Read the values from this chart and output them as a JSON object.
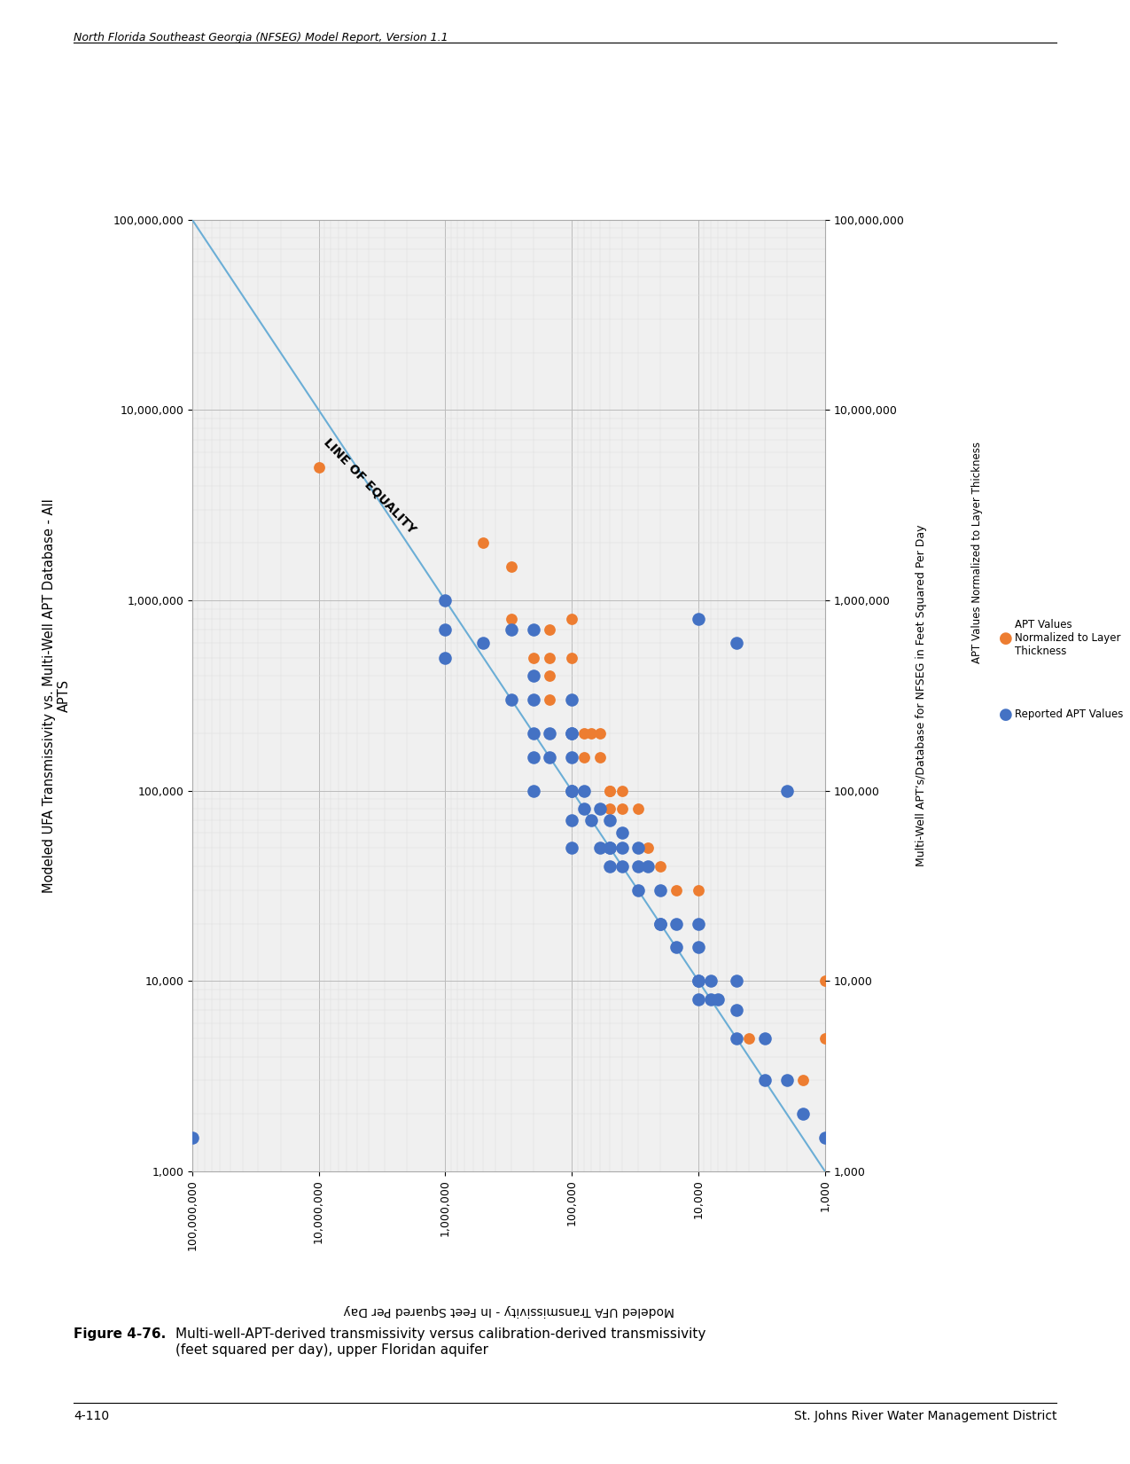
{
  "blue_points": [
    [
      100000000,
      1500
    ],
    [
      1000000,
      1000000
    ],
    [
      1000000,
      700000
    ],
    [
      1000000,
      500000
    ],
    [
      500000,
      600000
    ],
    [
      300000,
      700000
    ],
    [
      200000,
      700000
    ],
    [
      300000,
      300000
    ],
    [
      200000,
      400000
    ],
    [
      200000,
      300000
    ],
    [
      200000,
      200000
    ],
    [
      200000,
      150000
    ],
    [
      200000,
      100000
    ],
    [
      150000,
      200000
    ],
    [
      150000,
      150000
    ],
    [
      100000,
      300000
    ],
    [
      100000,
      200000
    ],
    [
      100000,
      200000
    ],
    [
      100000,
      150000
    ],
    [
      100000,
      100000
    ],
    [
      100000,
      100000
    ],
    [
      100000,
      70000
    ],
    [
      100000,
      50000
    ],
    [
      80000,
      100000
    ],
    [
      80000,
      80000
    ],
    [
      70000,
      70000
    ],
    [
      60000,
      80000
    ],
    [
      60000,
      50000
    ],
    [
      50000,
      70000
    ],
    [
      50000,
      50000
    ],
    [
      50000,
      50000
    ],
    [
      50000,
      40000
    ],
    [
      40000,
      60000
    ],
    [
      40000,
      50000
    ],
    [
      40000,
      40000
    ],
    [
      30000,
      50000
    ],
    [
      30000,
      40000
    ],
    [
      30000,
      30000
    ],
    [
      25000,
      40000
    ],
    [
      20000,
      30000
    ],
    [
      20000,
      20000
    ],
    [
      20000,
      20000
    ],
    [
      15000,
      20000
    ],
    [
      15000,
      15000
    ],
    [
      10000,
      20000
    ],
    [
      10000,
      15000
    ],
    [
      10000,
      10000
    ],
    [
      10000,
      10000
    ],
    [
      10000,
      8000
    ],
    [
      8000,
      10000
    ],
    [
      8000,
      8000
    ],
    [
      7000,
      8000
    ],
    [
      5000,
      10000
    ],
    [
      5000,
      7000
    ],
    [
      5000,
      5000
    ],
    [
      3000,
      5000
    ],
    [
      3000,
      3000
    ],
    [
      2000,
      3000
    ],
    [
      1500,
      2000
    ],
    [
      10000,
      800000
    ],
    [
      5000,
      600000
    ],
    [
      2000,
      100000
    ],
    [
      1000,
      1500
    ]
  ],
  "orange_points": [
    [
      10000000,
      5000000
    ],
    [
      500000,
      2000000
    ],
    [
      300000,
      1500000
    ],
    [
      300000,
      800000
    ],
    [
      200000,
      700000
    ],
    [
      200000,
      500000
    ],
    [
      150000,
      700000
    ],
    [
      150000,
      500000
    ],
    [
      150000,
      400000
    ],
    [
      150000,
      300000
    ],
    [
      100000,
      800000
    ],
    [
      100000,
      500000
    ],
    [
      100000,
      300000
    ],
    [
      100000,
      200000
    ],
    [
      100000,
      150000
    ],
    [
      100000,
      100000
    ],
    [
      80000,
      200000
    ],
    [
      80000,
      150000
    ],
    [
      70000,
      200000
    ],
    [
      60000,
      200000
    ],
    [
      60000,
      150000
    ],
    [
      50000,
      100000
    ],
    [
      50000,
      100000
    ],
    [
      50000,
      80000
    ],
    [
      40000,
      100000
    ],
    [
      40000,
      80000
    ],
    [
      40000,
      60000
    ],
    [
      30000,
      80000
    ],
    [
      30000,
      50000
    ],
    [
      30000,
      40000
    ],
    [
      25000,
      50000
    ],
    [
      20000,
      40000
    ],
    [
      20000,
      30000
    ],
    [
      15000,
      30000
    ],
    [
      15000,
      20000
    ],
    [
      10000,
      30000
    ],
    [
      10000,
      20000
    ],
    [
      10000,
      15000
    ],
    [
      10000,
      10000
    ],
    [
      10000,
      8000
    ],
    [
      8000,
      10000
    ],
    [
      7000,
      8000
    ],
    [
      5000,
      10000
    ],
    [
      5000,
      7000
    ],
    [
      5000,
      5000
    ],
    [
      4000,
      5000
    ],
    [
      3000,
      5000
    ],
    [
      3000,
      3000
    ],
    [
      2000,
      3000
    ],
    [
      1500,
      3000
    ],
    [
      1000,
      10000
    ],
    [
      1000,
      5000
    ]
  ],
  "xmin": 1000,
  "xmax": 100000000,
  "ymin": 1000,
  "ymax": 100000000,
  "blue_color": "#4472C4",
  "orange_color": "#ED7D31",
  "line_color": "#6BAED6",
  "plot_bg_color": "#F0F0F0",
  "grid_major_color": "#BBBBBB",
  "grid_minor_color": "#DDDDDD",
  "x_ticks": [
    100000000,
    10000000,
    1000000,
    100000,
    10000,
    1000
  ],
  "y_ticks": [
    100000000,
    10000000,
    1000000,
    100000,
    10000,
    1000
  ],
  "ylabel_left_line1": "Modeled UFA Transmissivity vs. Multi-Well APT Database - All",
  "ylabel_left_line2": "APTS",
  "xlabel": "Modeled UFA Transmissivity - In Feet Squared Per Day",
  "right_axis_label": "Multi-Well APT’s/Database for NFSEG in Feet Squared Per Day",
  "right_top_label": "APT Values Normalized to Layer Thickness",
  "legend_blue": "Reported APT Values",
  "legend_orange": "APT Values Normalized to Layer Thickness",
  "line_equality_label": "LINE OF EQUALITY",
  "header": "North Florida Southeast Georgia (NFSEG) Model Report, Version 1.1",
  "figure_label": "Figure 4-76.",
  "figure_caption": "Multi-well-APT-derived transmissivity versus calibration-derived transmissivity\n(feet squared per day), upper Floridan aquifer",
  "page_num": "4-110",
  "org_name": "St. Johns River Water Management District"
}
